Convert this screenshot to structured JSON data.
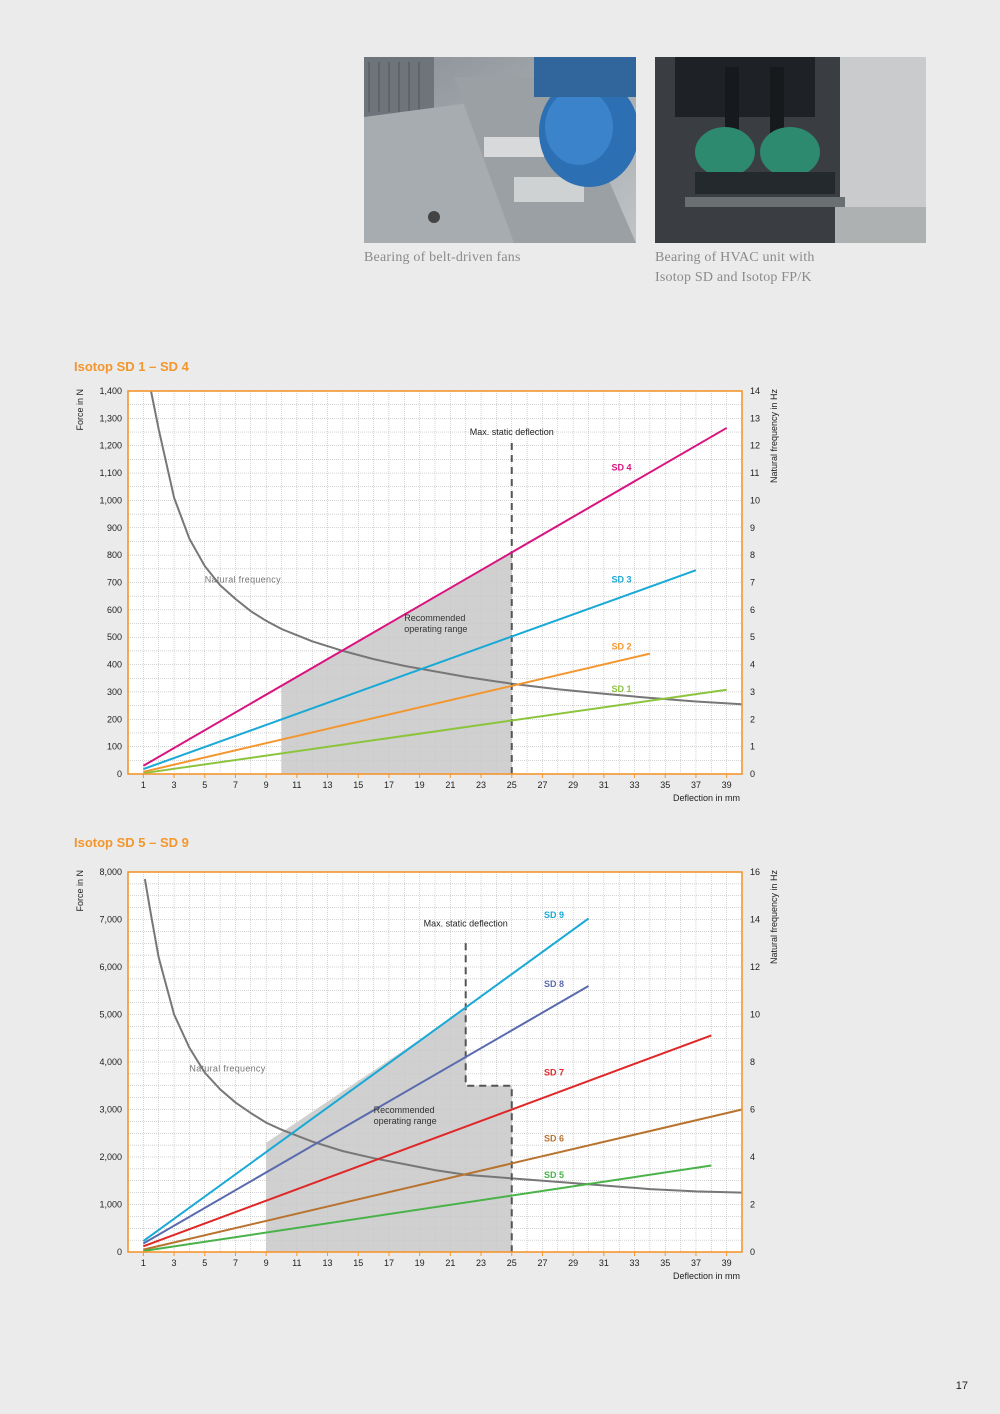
{
  "photos": [
    {
      "caption": "Bearing of belt-driven fans"
    },
    {
      "caption_lines": [
        "Bearing of HVAC unit with",
        "Isotop SD and Isotop FP/K"
      ]
    }
  ],
  "page_number": "17",
  "colors": {
    "axis": "#f3962e",
    "natural_frequency": "#777777",
    "range_fill": "#c8c8c8"
  },
  "chart_data": [
    {
      "type": "line",
      "title": "Isotop SD 1 – SD 4",
      "xlabel": "Deflection in mm",
      "ylabel": "Force in N",
      "y2label": "Natural frequency in Hz",
      "xlim": [
        0,
        40
      ],
      "ylim": [
        0,
        1400
      ],
      "y2lim": [
        0,
        14
      ],
      "x_ticks": [
        1,
        3,
        5,
        7,
        9,
        11,
        13,
        15,
        17,
        19,
        21,
        23,
        25,
        27,
        29,
        31,
        33,
        35,
        37,
        39
      ],
      "y_ticks": [
        0,
        100,
        200,
        300,
        400,
        500,
        600,
        700,
        800,
        900,
        1000,
        1100,
        1200,
        1300,
        1400
      ],
      "y_tick_labels": [
        "0",
        "100",
        "200",
        "300",
        "400",
        "500",
        "600",
        "700",
        "800",
        "900",
        "1,000",
        "1,100",
        "1,200",
        "1,300",
        "1,400"
      ],
      "y2_ticks": [
        0,
        1,
        2,
        3,
        4,
        5,
        6,
        7,
        8,
        9,
        10,
        11,
        12,
        13,
        14
      ],
      "grid": true,
      "series": [
        {
          "name": "SD 4",
          "color": "#d9137f",
          "x": [
            1,
            39
          ],
          "y": [
            30,
            1265
          ]
        },
        {
          "name": "SD 3",
          "color": "#19a9d6",
          "x": [
            1,
            37
          ],
          "y": [
            18,
            745
          ]
        },
        {
          "name": "SD 2",
          "color": "#f3962e",
          "x": [
            1,
            34
          ],
          "y": [
            8,
            440
          ]
        },
        {
          "name": "SD 1",
          "color": "#8cc43e",
          "x": [
            1,
            39
          ],
          "y": [
            3,
            308
          ]
        }
      ],
      "natural_frequency": {
        "name": "Natural frequency",
        "x": [
          1.5,
          2,
          3,
          4,
          5,
          6,
          7,
          8,
          9,
          10,
          12,
          14,
          16,
          18,
          20,
          22,
          24,
          25,
          28,
          31,
          34,
          37,
          40
        ],
        "y": [
          14.6,
          12.6,
          10.1,
          8.6,
          7.6,
          6.9,
          6.4,
          5.95,
          5.6,
          5.3,
          4.85,
          4.5,
          4.2,
          3.95,
          3.75,
          3.55,
          3.38,
          3.3,
          3.1,
          2.93,
          2.78,
          2.65,
          2.55
        ]
      },
      "recommended_range": {
        "label_lines": [
          "Recommended",
          "operating range"
        ],
        "x_start": 10,
        "x_end": 25
      },
      "max_static_deflection": {
        "label": "Max. static deflection",
        "x": 25,
        "y_top": 1210
      }
    },
    {
      "type": "line",
      "title": "Isotop SD 5 – SD 9",
      "xlabel": "Deflection in mm",
      "ylabel": "Force in N",
      "y2label": "Natural frequency in Hz",
      "xlim": [
        0,
        40
      ],
      "ylim": [
        0,
        8000
      ],
      "y2lim": [
        0,
        16
      ],
      "x_ticks": [
        1,
        3,
        5,
        7,
        9,
        11,
        13,
        15,
        17,
        19,
        21,
        23,
        25,
        27,
        29,
        31,
        33,
        35,
        37,
        39
      ],
      "y_ticks": [
        0,
        1000,
        2000,
        3000,
        4000,
        5000,
        6000,
        7000,
        8000
      ],
      "y_tick_labels": [
        "0",
        "1,000",
        "2,000",
        "3,000",
        "4,000",
        "5,000",
        "6,000",
        "7,000",
        "8,000"
      ],
      "y2_ticks": [
        0,
        2,
        4,
        6,
        8,
        10,
        12,
        14,
        16
      ],
      "grid": true,
      "series": [
        {
          "name": "SD 9",
          "color": "#19a9d6",
          "x": [
            1,
            30
          ],
          "y": [
            230,
            7020
          ]
        },
        {
          "name": "SD 8",
          "color": "#5a6aae",
          "x": [
            1,
            30
          ],
          "y": [
            180,
            5600
          ]
        },
        {
          "name": "SD 7",
          "color": "#e02727",
          "x": [
            1,
            38
          ],
          "y": [
            120,
            4560
          ]
        },
        {
          "name": "SD 6",
          "color": "#b8732f",
          "x": [
            1,
            40
          ],
          "y": [
            50,
            3000
          ]
        },
        {
          "name": "SD 5",
          "color": "#49b249",
          "x": [
            1,
            38
          ],
          "y": [
            20,
            1820
          ]
        }
      ],
      "natural_frequency": {
        "name": "Natural frequency",
        "x": [
          1.1,
          1.5,
          2,
          3,
          4,
          5,
          6,
          7,
          8,
          9,
          10,
          12,
          14,
          16,
          18,
          20,
          22,
          25,
          28,
          31,
          34,
          37,
          40
        ],
        "y": [
          15.7,
          14.2,
          12.4,
          10.0,
          8.6,
          7.55,
          6.85,
          6.3,
          5.85,
          5.45,
          5.15,
          4.65,
          4.25,
          3.95,
          3.7,
          3.45,
          3.25,
          3.1,
          2.95,
          2.8,
          2.65,
          2.55,
          2.5
        ]
      },
      "recommended_range": {
        "label_lines": [
          "Recommended",
          "operating range"
        ],
        "x_start": 9,
        "x_end": 25,
        "top_points": [
          [
            9,
            2300
          ],
          [
            22,
            5120
          ],
          [
            22,
            3500
          ],
          [
            25,
            3500
          ]
        ]
      },
      "max_static_deflection": {
        "label": "Max. static deflection",
        "x": 22,
        "y_top": 6500,
        "step_y": 3500,
        "x_end": 25
      }
    }
  ]
}
